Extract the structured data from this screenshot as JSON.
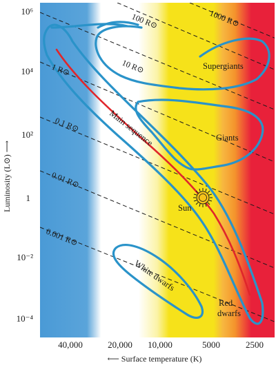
{
  "diagram": {
    "y_axis_label": "Luminosity (L⊙) ⟶",
    "x_axis_label": "⟵ Surface temperature (K)",
    "y_ticks": [
      "10⁶",
      "10⁴",
      "10²",
      "1",
      "10⁻²",
      "10⁻⁴"
    ],
    "x_ticks": [
      "40,000",
      "20,000",
      "10,000",
      "5000",
      "2500"
    ],
    "radius_lines": [
      "1000 R⊙",
      "100 R⊙",
      "10 R⊙",
      "1 R⊙",
      "0.1 R⊙",
      "0.01 R⊙",
      "0.001 R⊙"
    ],
    "regions": {
      "supergiants": "Supergiants",
      "giants": "Giants",
      "main_sequence": "Main sequence",
      "sun": "Sun",
      "white_dwarfs": "White dwarfs",
      "red_dwarfs_line1": "Red",
      "red_dwarfs_line2": "dwarfs"
    },
    "colors": {
      "region_outline": "#2a93c9",
      "main_sequence_curve": "#e0262b",
      "hot_blue": "#4a9ad6",
      "yellow": "#f6e21a",
      "orange": "#f59a2e",
      "red": "#e8213a",
      "sun": "#f6c31a"
    }
  }
}
